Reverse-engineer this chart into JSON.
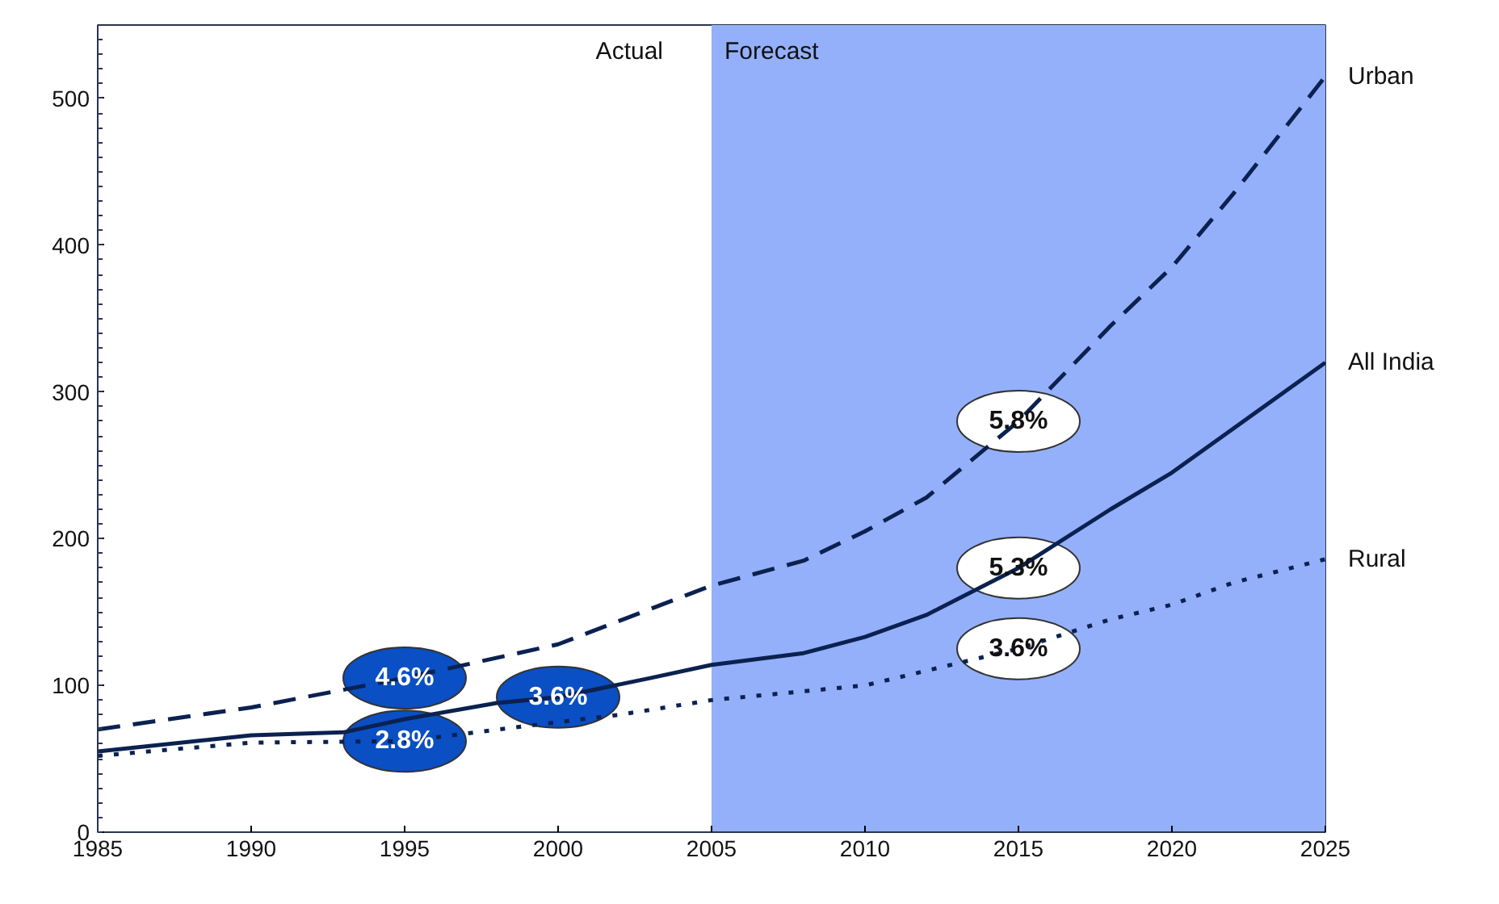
{
  "chart_data": {
    "type": "line",
    "xlim": [
      1985,
      2025
    ],
    "xticks": [
      1985,
      1990,
      1995,
      2000,
      2005,
      2010,
      2015,
      2020,
      2025
    ],
    "ylim": [
      0,
      550
    ],
    "yticks": [
      0,
      100,
      200,
      300,
      400,
      500
    ],
    "grid": false,
    "legend": false,
    "series": [
      {
        "name": "Urban",
        "color": "#0b2150",
        "line_style": "dashed",
        "x": [
          1985,
          1990,
          1995,
          2000,
          2005,
          2008,
          2010,
          2012,
          2015,
          2018,
          2020,
          2022,
          2025
        ],
        "values": [
          70,
          85,
          105,
          128,
          168,
          185,
          205,
          228,
          280,
          345,
          385,
          435,
          515
        ]
      },
      {
        "name": "All India",
        "color": "#0b2150",
        "line_style": "solid",
        "x": [
          1985,
          1990,
          1993,
          1995,
          1998,
          2000,
          2003,
          2005,
          2008,
          2010,
          2012,
          2015,
          2018,
          2020,
          2022,
          2025
        ],
        "values": [
          55,
          66,
          68,
          77,
          88,
          92,
          105,
          114,
          122,
          133,
          148,
          180,
          220,
          245,
          275,
          320
        ]
      },
      {
        "name": "Rural",
        "color": "#0b2150",
        "line_style": "dotted",
        "x": [
          1985,
          1990,
          1995,
          2000,
          2002,
          2005,
          2008,
          2010,
          2012,
          2015,
          2018,
          2020,
          2022,
          2025
        ],
        "values": [
          52,
          61,
          62,
          75,
          80,
          90,
          96,
          100,
          110,
          125,
          145,
          155,
          170,
          186
        ]
      }
    ],
    "bands": [
      {
        "axis": "x",
        "from": 2005,
        "to": 2025,
        "label": "Forecast",
        "color": "#94b0fa"
      }
    ],
    "annotations": [
      "Actual",
      {
        "text": "4.6%",
        "x": 1995,
        "y": 105
      },
      {
        "text": "3.6%",
        "x": 2000,
        "y": 92
      },
      {
        "text": "2.8%",
        "x": 1995,
        "y": 62
      },
      {
        "text": "5.8%",
        "x": 2015,
        "y": 280
      },
      {
        "text": "5.3%",
        "x": 2015,
        "y": 180
      },
      {
        "text": "3.6%",
        "x": 2015,
        "y": 125
      }
    ]
  }
}
